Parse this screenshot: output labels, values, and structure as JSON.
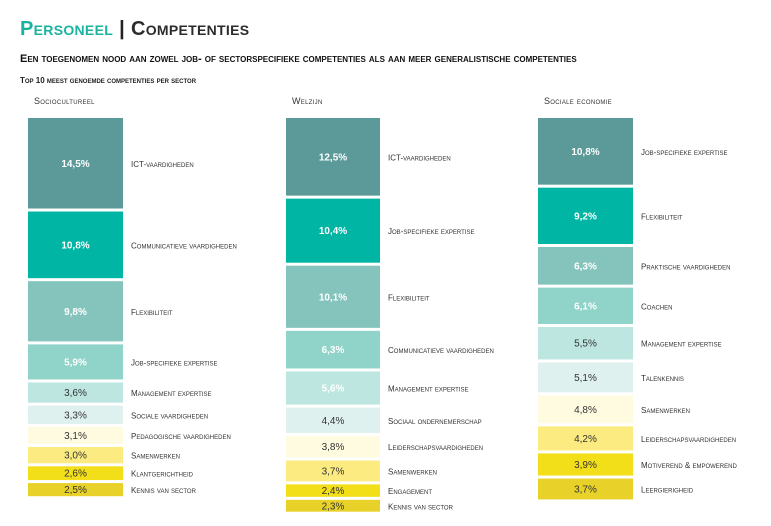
{
  "header": {
    "title_part1": "Personeel",
    "separator": "|",
    "title_part2": "Competenties",
    "subtitle": "Een toegenomen nood aan zowel job- of sectorspecifieke competenties als aan meer generalistische competenties"
  },
  "colors": {
    "dark_teal": "#5c9a9a",
    "teal": "#00b5a3",
    "mid_teal": "#84c4bc",
    "light_teal": "#8fd3c9",
    "pale_teal": "#bce6df",
    "very_pale": "#dff1ee",
    "cream": "#fffbe0",
    "light_yellow": "#fbeb80",
    "yellow": "#f3de1a",
    "dark_yellow": "#e8d22a"
  },
  "chart_data": {
    "type": "stacked-bar",
    "title": "Top 10 meest genoemde competenties per sector",
    "unit": "%",
    "sectors": [
      {
        "name": "Sociocultureel",
        "segments": [
          {
            "label": "ICT-vaardigheden",
            "value": 14.5,
            "value_label": "14,5%",
            "color": "#5c9a9a",
            "text_color": "#ffffff"
          },
          {
            "label": "Communicatieve vaardigheden",
            "value": 10.8,
            "value_label": "10,8%",
            "color": "#00b5a3",
            "text_color": "#ffffff"
          },
          {
            "label": "Flexibiliteit",
            "value": 9.8,
            "value_label": "9,8%",
            "color": "#84c4bc",
            "text_color": "#ffffff"
          },
          {
            "label": "Job-specifieke expertise",
            "value": 5.9,
            "value_label": "5,9%",
            "color": "#8fd3c9",
            "text_color": "#ffffff"
          },
          {
            "label": "Management expertise",
            "value": 3.6,
            "value_label": "3,6%",
            "color": "#bce6df",
            "text_color": "#333333"
          },
          {
            "label": "Sociale vaardigheden",
            "value": 3.3,
            "value_label": "3,3%",
            "color": "#dff1ee",
            "text_color": "#333333"
          },
          {
            "label": "Pedagogische vaardigheden",
            "value": 3.1,
            "value_label": "3,1%",
            "color": "#fffbe0",
            "text_color": "#333333"
          },
          {
            "label": "Samenwerken",
            "value": 3.0,
            "value_label": "3,0%",
            "color": "#fbeb80",
            "text_color": "#333333"
          },
          {
            "label": "Klantgerichtheid",
            "value": 2.6,
            "value_label": "2,6%",
            "color": "#f3de1a",
            "text_color": "#333333"
          },
          {
            "label": "Kennis van sector",
            "value": 2.5,
            "value_label": "2,5%",
            "color": "#e8d22a",
            "text_color": "#333333"
          }
        ]
      },
      {
        "name": "Welzijn",
        "segments": [
          {
            "label": "ICT-vaardigheden",
            "value": 12.5,
            "value_label": "12,5%",
            "color": "#5c9a9a",
            "text_color": "#ffffff"
          },
          {
            "label": "Job-specifieke expertise",
            "value": 10.4,
            "value_label": "10,4%",
            "color": "#00b5a3",
            "text_color": "#ffffff"
          },
          {
            "label": "Flexibiliteit",
            "value": 10.1,
            "value_label": "10,1%",
            "color": "#84c4bc",
            "text_color": "#ffffff"
          },
          {
            "label": "Communicatieve vaardigheden",
            "value": 6.3,
            "value_label": "6,3%",
            "color": "#8fd3c9",
            "text_color": "#ffffff"
          },
          {
            "label": "Management expertise",
            "value": 5.6,
            "value_label": "5,6%",
            "color": "#bce6df",
            "text_color": "#ffffff"
          },
          {
            "label": "Sociaal ondernemerschap",
            "value": 4.4,
            "value_label": "4,4%",
            "color": "#dff1ee",
            "text_color": "#333333"
          },
          {
            "label": "Leiderschapsvaardigheden",
            "value": 3.8,
            "value_label": "3,8%",
            "color": "#fffbe0",
            "text_color": "#333333"
          },
          {
            "label": "Samenwerken",
            "value": 3.7,
            "value_label": "3,7%",
            "color": "#fbeb80",
            "text_color": "#333333"
          },
          {
            "label": "Engagement",
            "value": 2.4,
            "value_label": "2,4%",
            "color": "#f3de1a",
            "text_color": "#333333"
          },
          {
            "label": "Kennis van sector",
            "value": 2.3,
            "value_label": "2,3%",
            "color": "#e8d22a",
            "text_color": "#333333"
          }
        ]
      },
      {
        "name": "Sociale economie",
        "segments": [
          {
            "label": "Job-specifieke expertise",
            "value": 10.8,
            "value_label": "10,8%",
            "color": "#5c9a9a",
            "text_color": "#ffffff"
          },
          {
            "label": "Flexibiliteit",
            "value": 9.2,
            "value_label": "9,2%",
            "color": "#00b5a3",
            "text_color": "#ffffff"
          },
          {
            "label": "Praktische vaardigheden",
            "value": 6.3,
            "value_label": "6,3%",
            "color": "#84c4bc",
            "text_color": "#ffffff"
          },
          {
            "label": "Coachen",
            "value": 6.1,
            "value_label": "6,1%",
            "color": "#8fd3c9",
            "text_color": "#ffffff"
          },
          {
            "label": "Management expertise",
            "value": 5.5,
            "value_label": "5,5%",
            "color": "#bce6df",
            "text_color": "#333333"
          },
          {
            "label": "Talenkennis",
            "value": 5.1,
            "value_label": "5,1%",
            "color": "#dff1ee",
            "text_color": "#333333"
          },
          {
            "label": "Samenwerken",
            "value": 4.8,
            "value_label": "4,8%",
            "color": "#fffbe0",
            "text_color": "#333333"
          },
          {
            "label": "Leiderschapsvaardigheden",
            "value": 4.2,
            "value_label": "4,2%",
            "color": "#fbeb80",
            "text_color": "#333333"
          },
          {
            "label": "Motiverend & empowerend",
            "value": 3.9,
            "value_label": "3,9%",
            "color": "#f3de1a",
            "text_color": "#333333"
          },
          {
            "label": "Leergierigheid",
            "value": 3.7,
            "value_label": "3,7%",
            "color": "#e8d22a",
            "text_color": "#333333"
          }
        ]
      }
    ]
  }
}
